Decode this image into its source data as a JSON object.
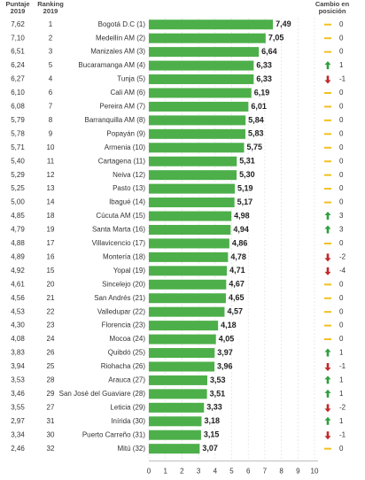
{
  "chart_data": {
    "type": "hbar",
    "categories": [
      "Bogotá D.C (1)",
      "Medellín AM (2)",
      "Manizales AM (3)",
      "Bucaramanga AM (4)",
      "Tunja (5)",
      "Cali AM (6)",
      "Pereira AM (7)",
      "Barranquilla AM (8)",
      "Popayán (9)",
      "Armenia (10)",
      "Cartagena (11)",
      "Neiva (12)",
      "Pasto (13)",
      "Ibagué (14)",
      "Cúcuta AM (15)",
      "Santa Marta (16)",
      "Villavicencio (17)",
      "Montería (18)",
      "Yopal (19)",
      "Sincelejo (20)",
      "San Andrés (21)",
      "Valledupar (22)",
      "Florencia (23)",
      "Mocoa (24)",
      "Quibdó (25)",
      "Riohacha (26)",
      "Arauca (27)",
      "San José del Guaviare (28)",
      "Leticia (29)",
      "Inírida (30)",
      "Puerto Carreño (31)",
      "Mitú (32)"
    ],
    "values": [
      7.49,
      7.05,
      6.64,
      6.33,
      6.33,
      6.19,
      6.01,
      5.84,
      5.83,
      5.75,
      5.31,
      5.3,
      5.19,
      5.17,
      4.98,
      4.94,
      4.86,
      4.78,
      4.71,
      4.67,
      4.65,
      4.57,
      4.18,
      4.05,
      3.97,
      3.96,
      3.53,
      3.51,
      3.33,
      3.18,
      3.15,
      3.07
    ],
    "value_labels": [
      "7,49",
      "7,05",
      "6,64",
      "6,33",
      "6,33",
      "6,19",
      "6,01",
      "5,84",
      "5,83",
      "5,75",
      "5,31",
      "5,30",
      "5,19",
      "5,17",
      "4,98",
      "4,94",
      "4,86",
      "4,78",
      "4,71",
      "4,67",
      "4,65",
      "4,57",
      "4,18",
      "4,05",
      "3,97",
      "3,96",
      "3,53",
      "3,51",
      "3,33",
      "3,18",
      "3,15",
      "3,07"
    ],
    "color": "#4daf4a",
    "xlim": [
      0,
      10
    ],
    "xticks": [
      0,
      1,
      2,
      3,
      4,
      5,
      6,
      7,
      8,
      9,
      10
    ],
    "grid": true,
    "puntaje_2019": {
      "header": [
        "Puntaje",
        "2019"
      ],
      "values": [
        "7,62",
        "7,10",
        "6,51",
        "6,24",
        "6,27",
        "6,10",
        "6,08",
        "5,79",
        "5,78",
        "5,71",
        "5,40",
        "5,29",
        "5,25",
        "5,00",
        "4,85",
        "4,79",
        "4,88",
        "4,89",
        "4,92",
        "4,61",
        "4,56",
        "4,53",
        "4,30",
        "4,08",
        "3,83",
        "3,94",
        "3,53",
        "3,46",
        "3,55",
        "2,97",
        "3,34",
        "2,46"
      ]
    },
    "ranking_2019": {
      "header": [
        "Ranking",
        "2019"
      ],
      "values": [
        1,
        2,
        3,
        5,
        4,
        6,
        7,
        8,
        9,
        10,
        11,
        12,
        13,
        14,
        18,
        19,
        17,
        16,
        15,
        20,
        21,
        22,
        23,
        24,
        26,
        25,
        28,
        29,
        27,
        31,
        30,
        32
      ]
    },
    "cambio": {
      "header": [
        "Cambio en",
        "posición"
      ],
      "values": [
        0,
        0,
        0,
        1,
        -1,
        0,
        0,
        0,
        0,
        0,
        0,
        0,
        0,
        0,
        3,
        3,
        0,
        -2,
        -4,
        0,
        0,
        0,
        0,
        0,
        1,
        -1,
        1,
        1,
        -2,
        1,
        -1,
        0
      ],
      "colors": {
        "up": "#2e9e3e",
        "down": "#c0292b",
        "same": "#f0c020"
      }
    }
  }
}
